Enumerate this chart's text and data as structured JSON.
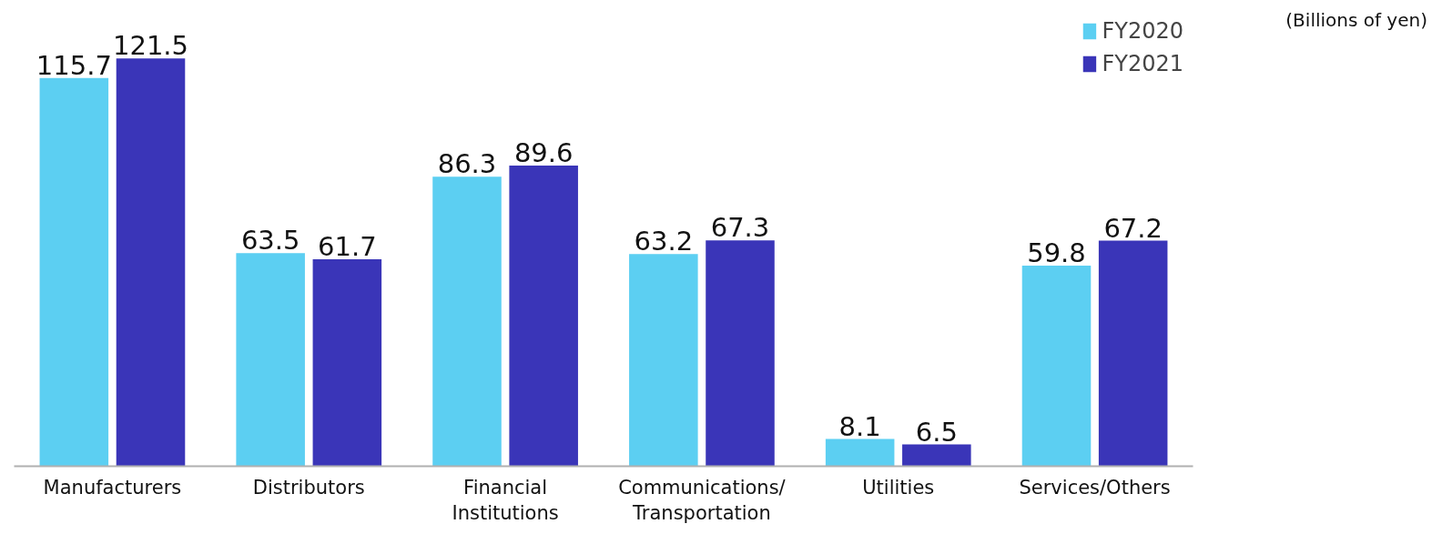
{
  "chart_data": {
    "type": "bar",
    "categories": [
      "Manufacturers",
      "Distributors",
      "Financial Institutions",
      "Communications/Transportation",
      "Utilities",
      "Services/Others"
    ],
    "series": [
      {
        "name": "FY2020",
        "color": "#5ccff2",
        "values": [
          115.7,
          63.5,
          86.3,
          63.2,
          8.1,
          59.8
        ]
      },
      {
        "name": "FY2021",
        "color": "#3a35b8",
        "values": [
          121.5,
          61.7,
          89.6,
          67.3,
          6.5,
          67.2
        ]
      }
    ],
    "relative": false,
    "data_labels": true,
    "legend": "top right",
    "grid": false,
    "annotations": [
      "(Billions of yen)"
    ]
  }
}
